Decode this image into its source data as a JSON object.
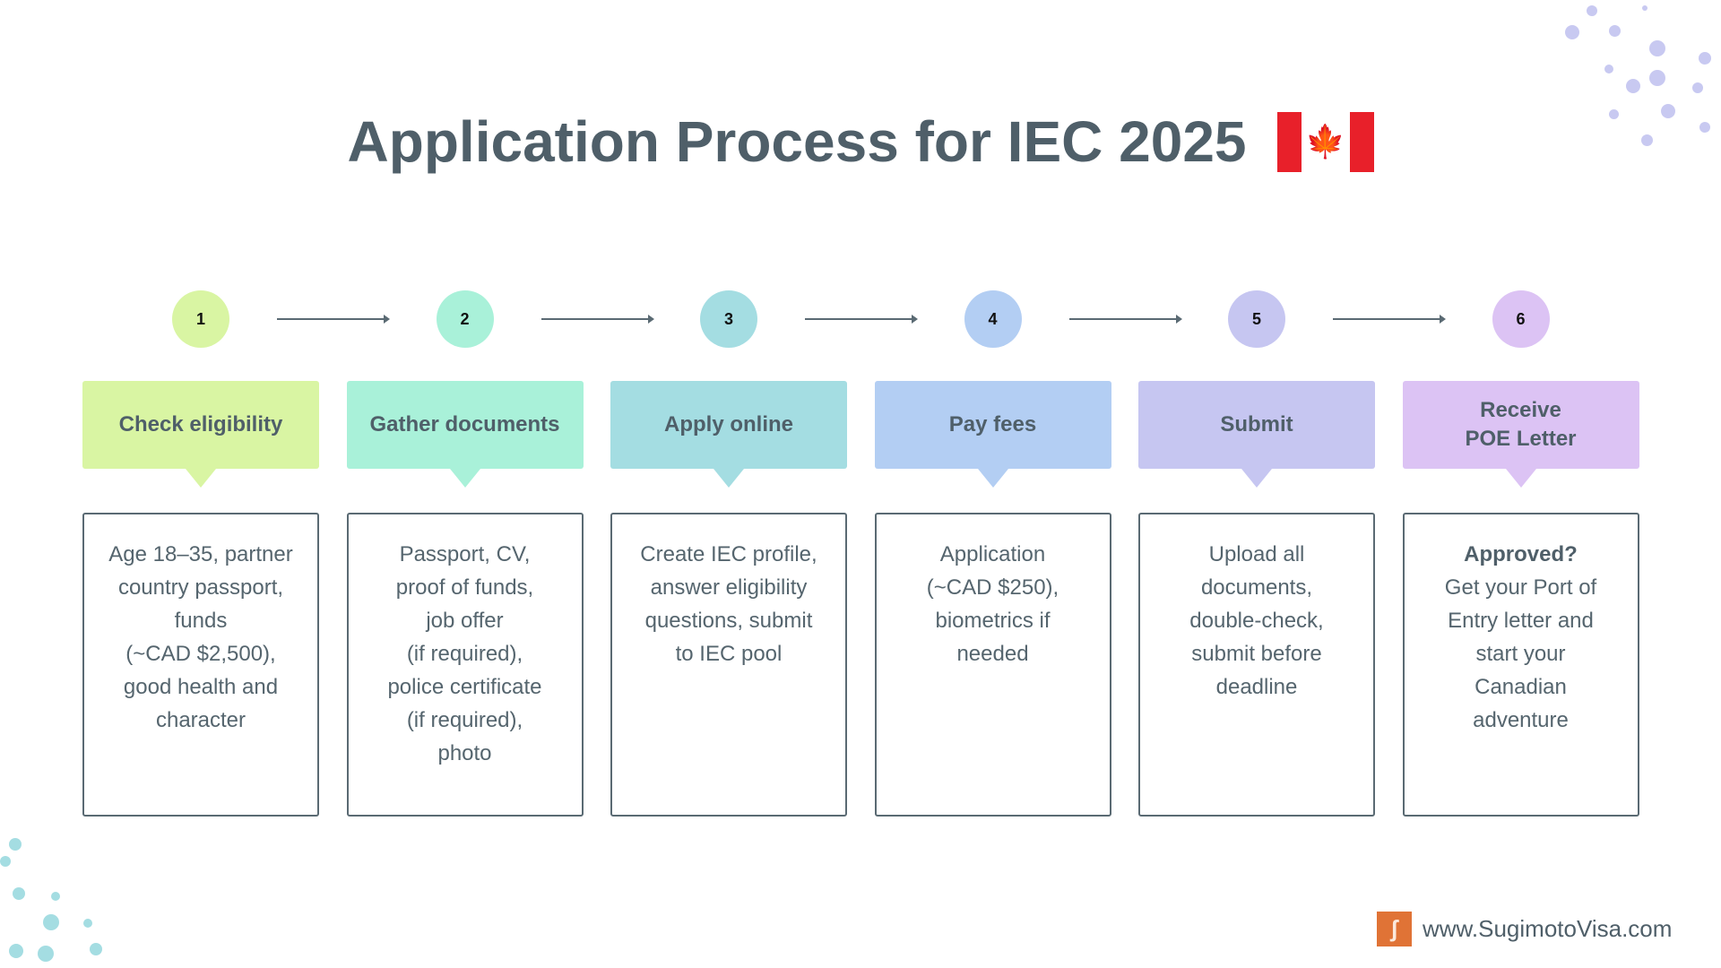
{
  "title": "Application Process for IEC 2025",
  "flag_icon": "canada-flag",
  "steps": [
    {
      "number": "1",
      "label": "Check eligibility",
      "color": "#d9f5a3",
      "detail_strong": "",
      "detail": "Age 18–35, partner\ncountry passport,\nfunds\n(~CAD $2,500),\ngood health and\ncharacter"
    },
    {
      "number": "2",
      "label": "Gather documents",
      "color": "#a9f1d9",
      "detail_strong": "",
      "detail": "Passport, CV,\nproof of funds,\njob offer\n(if required),\npolice certificate\n(if required),\nphoto"
    },
    {
      "number": "3",
      "label": "Apply online",
      "color": "#a4dde2",
      "detail_strong": "",
      "detail": "Create IEC profile,\nanswer eligibility\nquestions, submit\nto IEC pool"
    },
    {
      "number": "4",
      "label": "Pay fees",
      "color": "#b3cef3",
      "detail_strong": "",
      "detail": "Application\n(~CAD $250),\nbiometrics if\nneeded"
    },
    {
      "number": "5",
      "label": "Submit",
      "color": "#c6c6f1",
      "detail_strong": "",
      "detail": "Upload all\ndocuments,\ndouble-check,\nsubmit before\ndeadline"
    },
    {
      "number": "6",
      "label": "Receive\nPOE Letter",
      "color": "#dcc3f4",
      "detail_strong": "Approved?",
      "detail": "Get your Port of\nEntry letter and\nstart your\nCanadian\nadventure"
    }
  ],
  "footer": {
    "url": "www.SugimotoVisa.com",
    "logo_icon": "sugimoto-logo"
  }
}
